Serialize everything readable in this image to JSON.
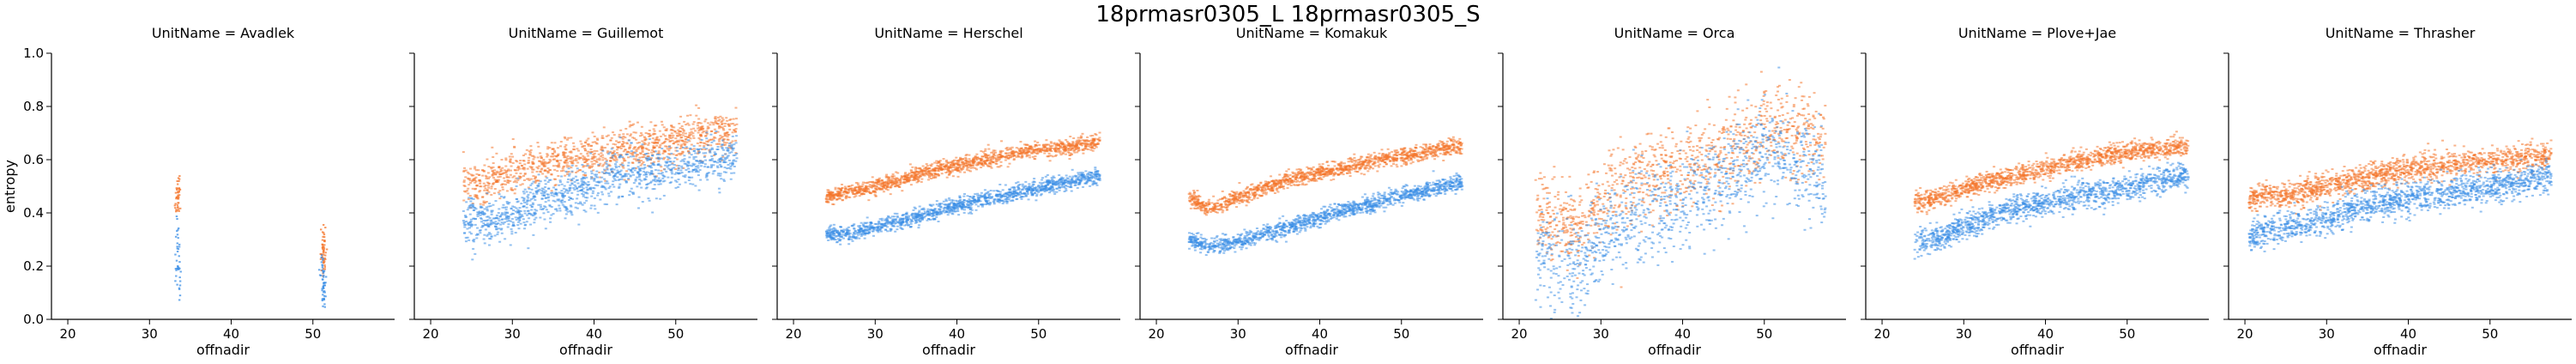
{
  "figure": {
    "suptitle": "18prmasr0305_L 18prmasr0305_S",
    "xlabel": "offnadir",
    "ylabel": "entropy",
    "series_colors": {
      "18prmasr0305_L": "#f4742a",
      "18prmasr0305_S": "#3a8ee6"
    }
  },
  "chart_data": [
    {
      "type": "scatter",
      "title": "UnitName = Avadlek",
      "xlim": [
        18,
        60
      ],
      "ylim": [
        0,
        1
      ],
      "xticks": [
        20,
        30,
        40,
        50
      ],
      "yticks": [
        0.0,
        0.2,
        0.4,
        0.6,
        0.8,
        1.0
      ],
      "series": [
        {
          "points": [
            [
              33.5,
              0.45
            ],
            [
              33.5,
              0.5
            ],
            [
              33.6,
              0.47
            ],
            [
              33.4,
              0.43
            ],
            [
              51.2,
              0.25
            ],
            [
              51.3,
              0.3
            ],
            [
              51.2,
              0.22
            ],
            [
              51.4,
              0.28
            ],
            [
              51.3,
              0.2
            ]
          ],
          "noise": 0.03,
          "density": 10
        },
        {
          "points": [
            [
              33.5,
              0.3
            ],
            [
              33.5,
              0.25
            ],
            [
              33.4,
              0.2
            ],
            [
              33.6,
              0.12
            ],
            [
              51.2,
              0.16
            ],
            [
              51.3,
              0.12
            ],
            [
              51.2,
              0.2
            ],
            [
              51.4,
              0.1
            ],
            [
              51.3,
              0.14
            ]
          ],
          "noise": 0.04,
          "density": 10
        }
      ]
    },
    {
      "type": "scatter",
      "title": "UnitName = Guillemot",
      "xlim": [
        18,
        60
      ],
      "ylim": [
        0,
        1
      ],
      "xticks": [
        20,
        30,
        40,
        50
      ],
      "yticks": [
        0.0,
        0.2,
        0.4,
        0.6,
        0.8,
        1.0
      ],
      "series": [
        {
          "points": [
            [
              24,
              0.52
            ],
            [
              26,
              0.5
            ],
            [
              28,
              0.53
            ],
            [
              30,
              0.55
            ],
            [
              32,
              0.57
            ],
            [
              35,
              0.58
            ],
            [
              38,
              0.6
            ],
            [
              41,
              0.62
            ],
            [
              44,
              0.64
            ],
            [
              47,
              0.65
            ],
            [
              50,
              0.66
            ],
            [
              53,
              0.7
            ],
            [
              56,
              0.7
            ],
            [
              57.5,
              0.71
            ]
          ],
          "noise": 0.04,
          "density": 34
        },
        {
          "points": [
            [
              24,
              0.38
            ],
            [
              26,
              0.37
            ],
            [
              28,
              0.37
            ],
            [
              30,
              0.4
            ],
            [
              32,
              0.42
            ],
            [
              35,
              0.46
            ],
            [
              38,
              0.49
            ],
            [
              41,
              0.52
            ],
            [
              44,
              0.55
            ],
            [
              47,
              0.55
            ],
            [
              50,
              0.57
            ],
            [
              53,
              0.58
            ],
            [
              56,
              0.6
            ],
            [
              57.5,
              0.6
            ]
          ],
          "noise": 0.045,
          "density": 34
        }
      ]
    },
    {
      "type": "scatter",
      "title": "UnitName = Herschel",
      "xlim": [
        18,
        60
      ],
      "ylim": [
        0,
        1
      ],
      "xticks": [
        20,
        30,
        40,
        50
      ],
      "yticks": [
        0.0,
        0.2,
        0.4,
        0.6,
        0.8,
        1.0
      ],
      "series": [
        {
          "points": [
            [
              24,
              0.46
            ],
            [
              27,
              0.48
            ],
            [
              30,
              0.5
            ],
            [
              33,
              0.52
            ],
            [
              36,
              0.55
            ],
            [
              39,
              0.57
            ],
            [
              42,
              0.59
            ],
            [
              45,
              0.61
            ],
            [
              48,
              0.63
            ],
            [
              51,
              0.64
            ],
            [
              54,
              0.65
            ],
            [
              57.5,
              0.67
            ]
          ],
          "noise": 0.015,
          "density": 40
        },
        {
          "points": [
            [
              24,
              0.32
            ],
            [
              27,
              0.32
            ],
            [
              30,
              0.35
            ],
            [
              33,
              0.37
            ],
            [
              36,
              0.39
            ],
            [
              39,
              0.42
            ],
            [
              42,
              0.44
            ],
            [
              45,
              0.46
            ],
            [
              48,
              0.48
            ],
            [
              51,
              0.5
            ],
            [
              54,
              0.52
            ],
            [
              57.5,
              0.54
            ]
          ],
          "noise": 0.015,
          "density": 40
        }
      ]
    },
    {
      "type": "scatter",
      "title": "UnitName = Komakuk",
      "xlim": [
        18,
        60
      ],
      "ylim": [
        0,
        1
      ],
      "xticks": [
        20,
        30,
        40,
        50
      ],
      "yticks": [
        0.0,
        0.2,
        0.4,
        0.6,
        0.8,
        1.0
      ],
      "series": [
        {
          "points": [
            [
              24,
              0.46
            ],
            [
              26,
              0.42
            ],
            [
              28,
              0.43
            ],
            [
              31,
              0.47
            ],
            [
              34,
              0.5
            ],
            [
              37,
              0.53
            ],
            [
              40,
              0.55
            ],
            [
              43,
              0.57
            ],
            [
              46,
              0.59
            ],
            [
              49,
              0.61
            ],
            [
              52,
              0.62
            ],
            [
              55,
              0.64
            ],
            [
              57.5,
              0.65
            ]
          ],
          "noise": 0.015,
          "density": 40
        },
        {
          "points": [
            [
              24,
              0.3
            ],
            [
              26,
              0.27
            ],
            [
              28,
              0.28
            ],
            [
              31,
              0.3
            ],
            [
              34,
              0.33
            ],
            [
              37,
              0.35
            ],
            [
              40,
              0.38
            ],
            [
              43,
              0.41
            ],
            [
              46,
              0.43
            ],
            [
              49,
              0.46
            ],
            [
              52,
              0.48
            ],
            [
              55,
              0.5
            ],
            [
              57.5,
              0.52
            ]
          ],
          "noise": 0.015,
          "density": 40
        }
      ]
    },
    {
      "type": "scatter",
      "title": "UnitName = Orca",
      "xlim": [
        18,
        60
      ],
      "ylim": [
        0,
        1
      ],
      "xticks": [
        20,
        30,
        40,
        50
      ],
      "yticks": [
        0.0,
        0.2,
        0.4,
        0.6,
        0.8,
        1.0
      ],
      "series": [
        {
          "points": [
            [
              22,
              0.4
            ],
            [
              24,
              0.38
            ],
            [
              26,
              0.35
            ],
            [
              28,
              0.36
            ],
            [
              30,
              0.45
            ],
            [
              32,
              0.5
            ],
            [
              34,
              0.52
            ],
            [
              36,
              0.55
            ],
            [
              38,
              0.56
            ],
            [
              40,
              0.58
            ],
            [
              42,
              0.6
            ],
            [
              44,
              0.62
            ],
            [
              46,
              0.65
            ],
            [
              48,
              0.68
            ],
            [
              50,
              0.7
            ],
            [
              52,
              0.72
            ],
            [
              54,
              0.7
            ],
            [
              56,
              0.68
            ],
            [
              57.5,
              0.65
            ]
          ],
          "noise": 0.08,
          "density": 30
        },
        {
          "points": [
            [
              22,
              0.25
            ],
            [
              24,
              0.22
            ],
            [
              26,
              0.2
            ],
            [
              28,
              0.22
            ],
            [
              30,
              0.3
            ],
            [
              32,
              0.35
            ],
            [
              34,
              0.38
            ],
            [
              36,
              0.4
            ],
            [
              38,
              0.42
            ],
            [
              40,
              0.45
            ],
            [
              42,
              0.48
            ],
            [
              44,
              0.5
            ],
            [
              46,
              0.55
            ],
            [
              48,
              0.6
            ],
            [
              50,
              0.62
            ],
            [
              52,
              0.6
            ],
            [
              54,
              0.58
            ],
            [
              56,
              0.55
            ],
            [
              57.5,
              0.5
            ]
          ],
          "noise": 0.09,
          "density": 30
        }
      ]
    },
    {
      "type": "scatter",
      "title": "UnitName = Plove+Jae",
      "xlim": [
        18,
        60
      ],
      "ylim": [
        0,
        1
      ],
      "xticks": [
        20,
        30,
        40,
        50
      ],
      "yticks": [
        0.0,
        0.2,
        0.4,
        0.6,
        0.8,
        1.0
      ],
      "series": [
        {
          "points": [
            [
              24,
              0.44
            ],
            [
              27,
              0.46
            ],
            [
              30,
              0.49
            ],
            [
              33,
              0.52
            ],
            [
              36,
              0.54
            ],
            [
              39,
              0.56
            ],
            [
              42,
              0.58
            ],
            [
              45,
              0.6
            ],
            [
              48,
              0.62
            ],
            [
              51,
              0.63
            ],
            [
              54,
              0.64
            ],
            [
              57.5,
              0.65
            ]
          ],
          "noise": 0.018,
          "density": 40
        },
        {
          "points": [
            [
              24,
              0.29
            ],
            [
              27,
              0.31
            ],
            [
              30,
              0.35
            ],
            [
              33,
              0.38
            ],
            [
              36,
              0.41
            ],
            [
              39,
              0.43
            ],
            [
              42,
              0.45
            ],
            [
              45,
              0.47
            ],
            [
              48,
              0.48
            ],
            [
              51,
              0.5
            ],
            [
              54,
              0.52
            ],
            [
              57.5,
              0.54
            ]
          ],
          "noise": 0.025,
          "density": 40
        }
      ]
    },
    {
      "type": "scatter",
      "title": "UnitName = Thrasher",
      "xlim": [
        18,
        60
      ],
      "ylim": [
        0,
        1
      ],
      "xticks": [
        20,
        30,
        40,
        50
      ],
      "yticks": [
        0.0,
        0.2,
        0.4,
        0.6,
        0.8,
        1.0
      ],
      "series": [
        {
          "points": [
            [
              20.5,
              0.45
            ],
            [
              22,
              0.47
            ],
            [
              24,
              0.46
            ],
            [
              27,
              0.48
            ],
            [
              30,
              0.5
            ],
            [
              33,
              0.52
            ],
            [
              36,
              0.54
            ],
            [
              39,
              0.56
            ],
            [
              42,
              0.57
            ],
            [
              45,
              0.58
            ],
            [
              48,
              0.59
            ],
            [
              51,
              0.6
            ],
            [
              54,
              0.61
            ],
            [
              57.5,
              0.62
            ]
          ],
          "noise": 0.025,
          "density": 40
        },
        {
          "points": [
            [
              20.5,
              0.3
            ],
            [
              22,
              0.33
            ],
            [
              24,
              0.34
            ],
            [
              27,
              0.36
            ],
            [
              30,
              0.38
            ],
            [
              33,
              0.41
            ],
            [
              36,
              0.43
            ],
            [
              39,
              0.45
            ],
            [
              42,
              0.46
            ],
            [
              45,
              0.48
            ],
            [
              48,
              0.49
            ],
            [
              51,
              0.5
            ],
            [
              54,
              0.52
            ],
            [
              57.5,
              0.54
            ]
          ],
          "noise": 0.03,
          "density": 40
        }
      ]
    }
  ]
}
